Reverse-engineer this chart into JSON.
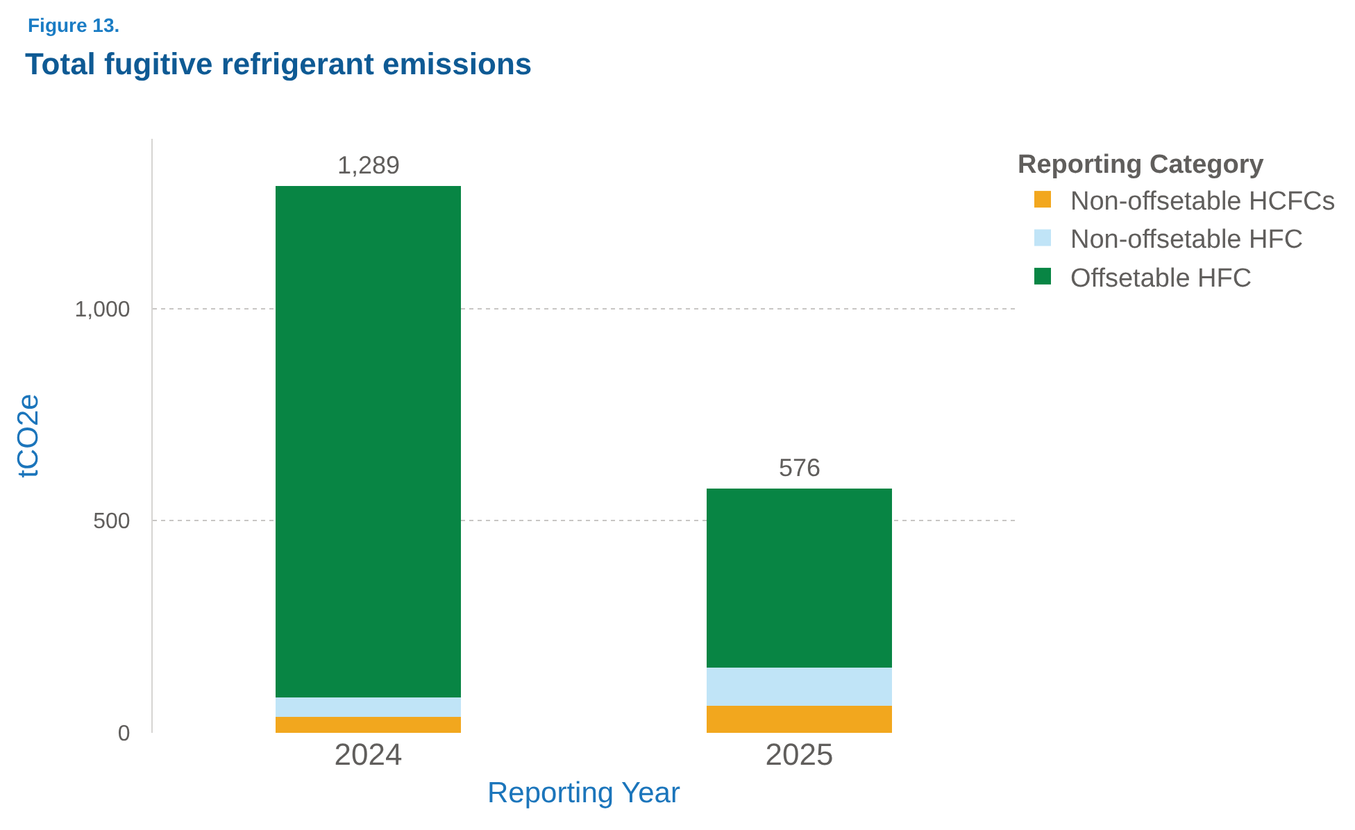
{
  "chart_data": {
    "type": "bar",
    "title": "Total fugitive refrigerant emissions",
    "annotations": [
      "Figure 13."
    ],
    "xlabel": "Reporting Year",
    "ylabel": "tCO2e",
    "legend_title": "Reporting Category",
    "categories": [
      "2024",
      "2025"
    ],
    "stacked": true,
    "series": [
      {
        "name": "Non-offsetable HCFCs",
        "color": "#f2a71e",
        "values": [
          37,
          63
        ]
      },
      {
        "name": "Non-offsetable HFC",
        "color": "#c0e4f7",
        "values": [
          47,
          90
        ]
      },
      {
        "name": "Offsetable HFC",
        "color": "#088544",
        "values": [
          1205,
          423
        ]
      }
    ],
    "totals": [
      "1,289",
      "576"
    ],
    "ylim": [
      0,
      1400
    ],
    "yticks": [
      0,
      500,
      {
        "value": 1000,
        "label": "1,000"
      }
    ],
    "grid": "y",
    "legend": "top right"
  }
}
